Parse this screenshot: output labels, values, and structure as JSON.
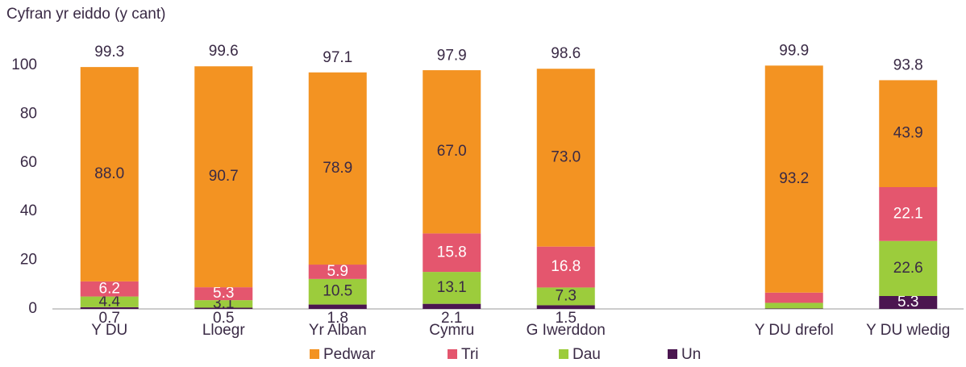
{
  "chart_data": {
    "type": "stacked_bar",
    "y_axis_label": "Cyfran yr eiddo (y cant)",
    "categories": [
      "Y DU",
      "Lloegr",
      "Yr Alban",
      "Cymru",
      "G Iwerddon",
      null,
      "Y DU drefol",
      "Y DU wledig"
    ],
    "series": [
      {
        "name": "Un",
        "color": "#4b1650",
        "values": [
          0.7,
          0.5,
          1.8,
          2.1,
          1.5,
          null,
          0.2,
          5.3
        ],
        "value_labels": [
          "0.7",
          "0.5",
          "1.8",
          "2.1",
          "1.5",
          null,
          null,
          "5.3"
        ]
      },
      {
        "name": "Dau",
        "color": "#9ccc3c",
        "values": [
          4.4,
          3.1,
          10.5,
          13.1,
          7.3,
          null,
          2.3,
          22.6
        ],
        "value_labels": [
          "4.4",
          "3.1",
          "10.5",
          "13.1",
          "7.3",
          null,
          null,
          "22.6"
        ]
      },
      {
        "name": "Tri",
        "color": "#e4566e",
        "values": [
          6.2,
          5.3,
          5.9,
          15.8,
          16.8,
          null,
          4.2,
          22.1
        ],
        "value_labels": [
          "6.2",
          "5.3",
          "5.9",
          "15.8",
          "16.8",
          null,
          null,
          "22.1"
        ]
      },
      {
        "name": "Pedwar",
        "color": "#f39322",
        "values": [
          88.0,
          90.7,
          78.9,
          67.0,
          73.0,
          null,
          93.2,
          43.9
        ],
        "value_labels": [
          "88.0",
          "90.7",
          "78.9",
          "67.0",
          "73.0",
          null,
          "93.2",
          "43.9"
        ]
      }
    ],
    "totals": [
      99.3,
      99.6,
      97.1,
      97.9,
      98.6,
      null,
      99.9,
      93.8
    ],
    "legend_order": [
      3,
      2,
      1,
      0
    ],
    "ylim": [
      0,
      100
    ],
    "yticks": [
      0,
      20,
      40,
      60,
      80,
      100
    ],
    "grid": false,
    "legend": "bottom"
  }
}
